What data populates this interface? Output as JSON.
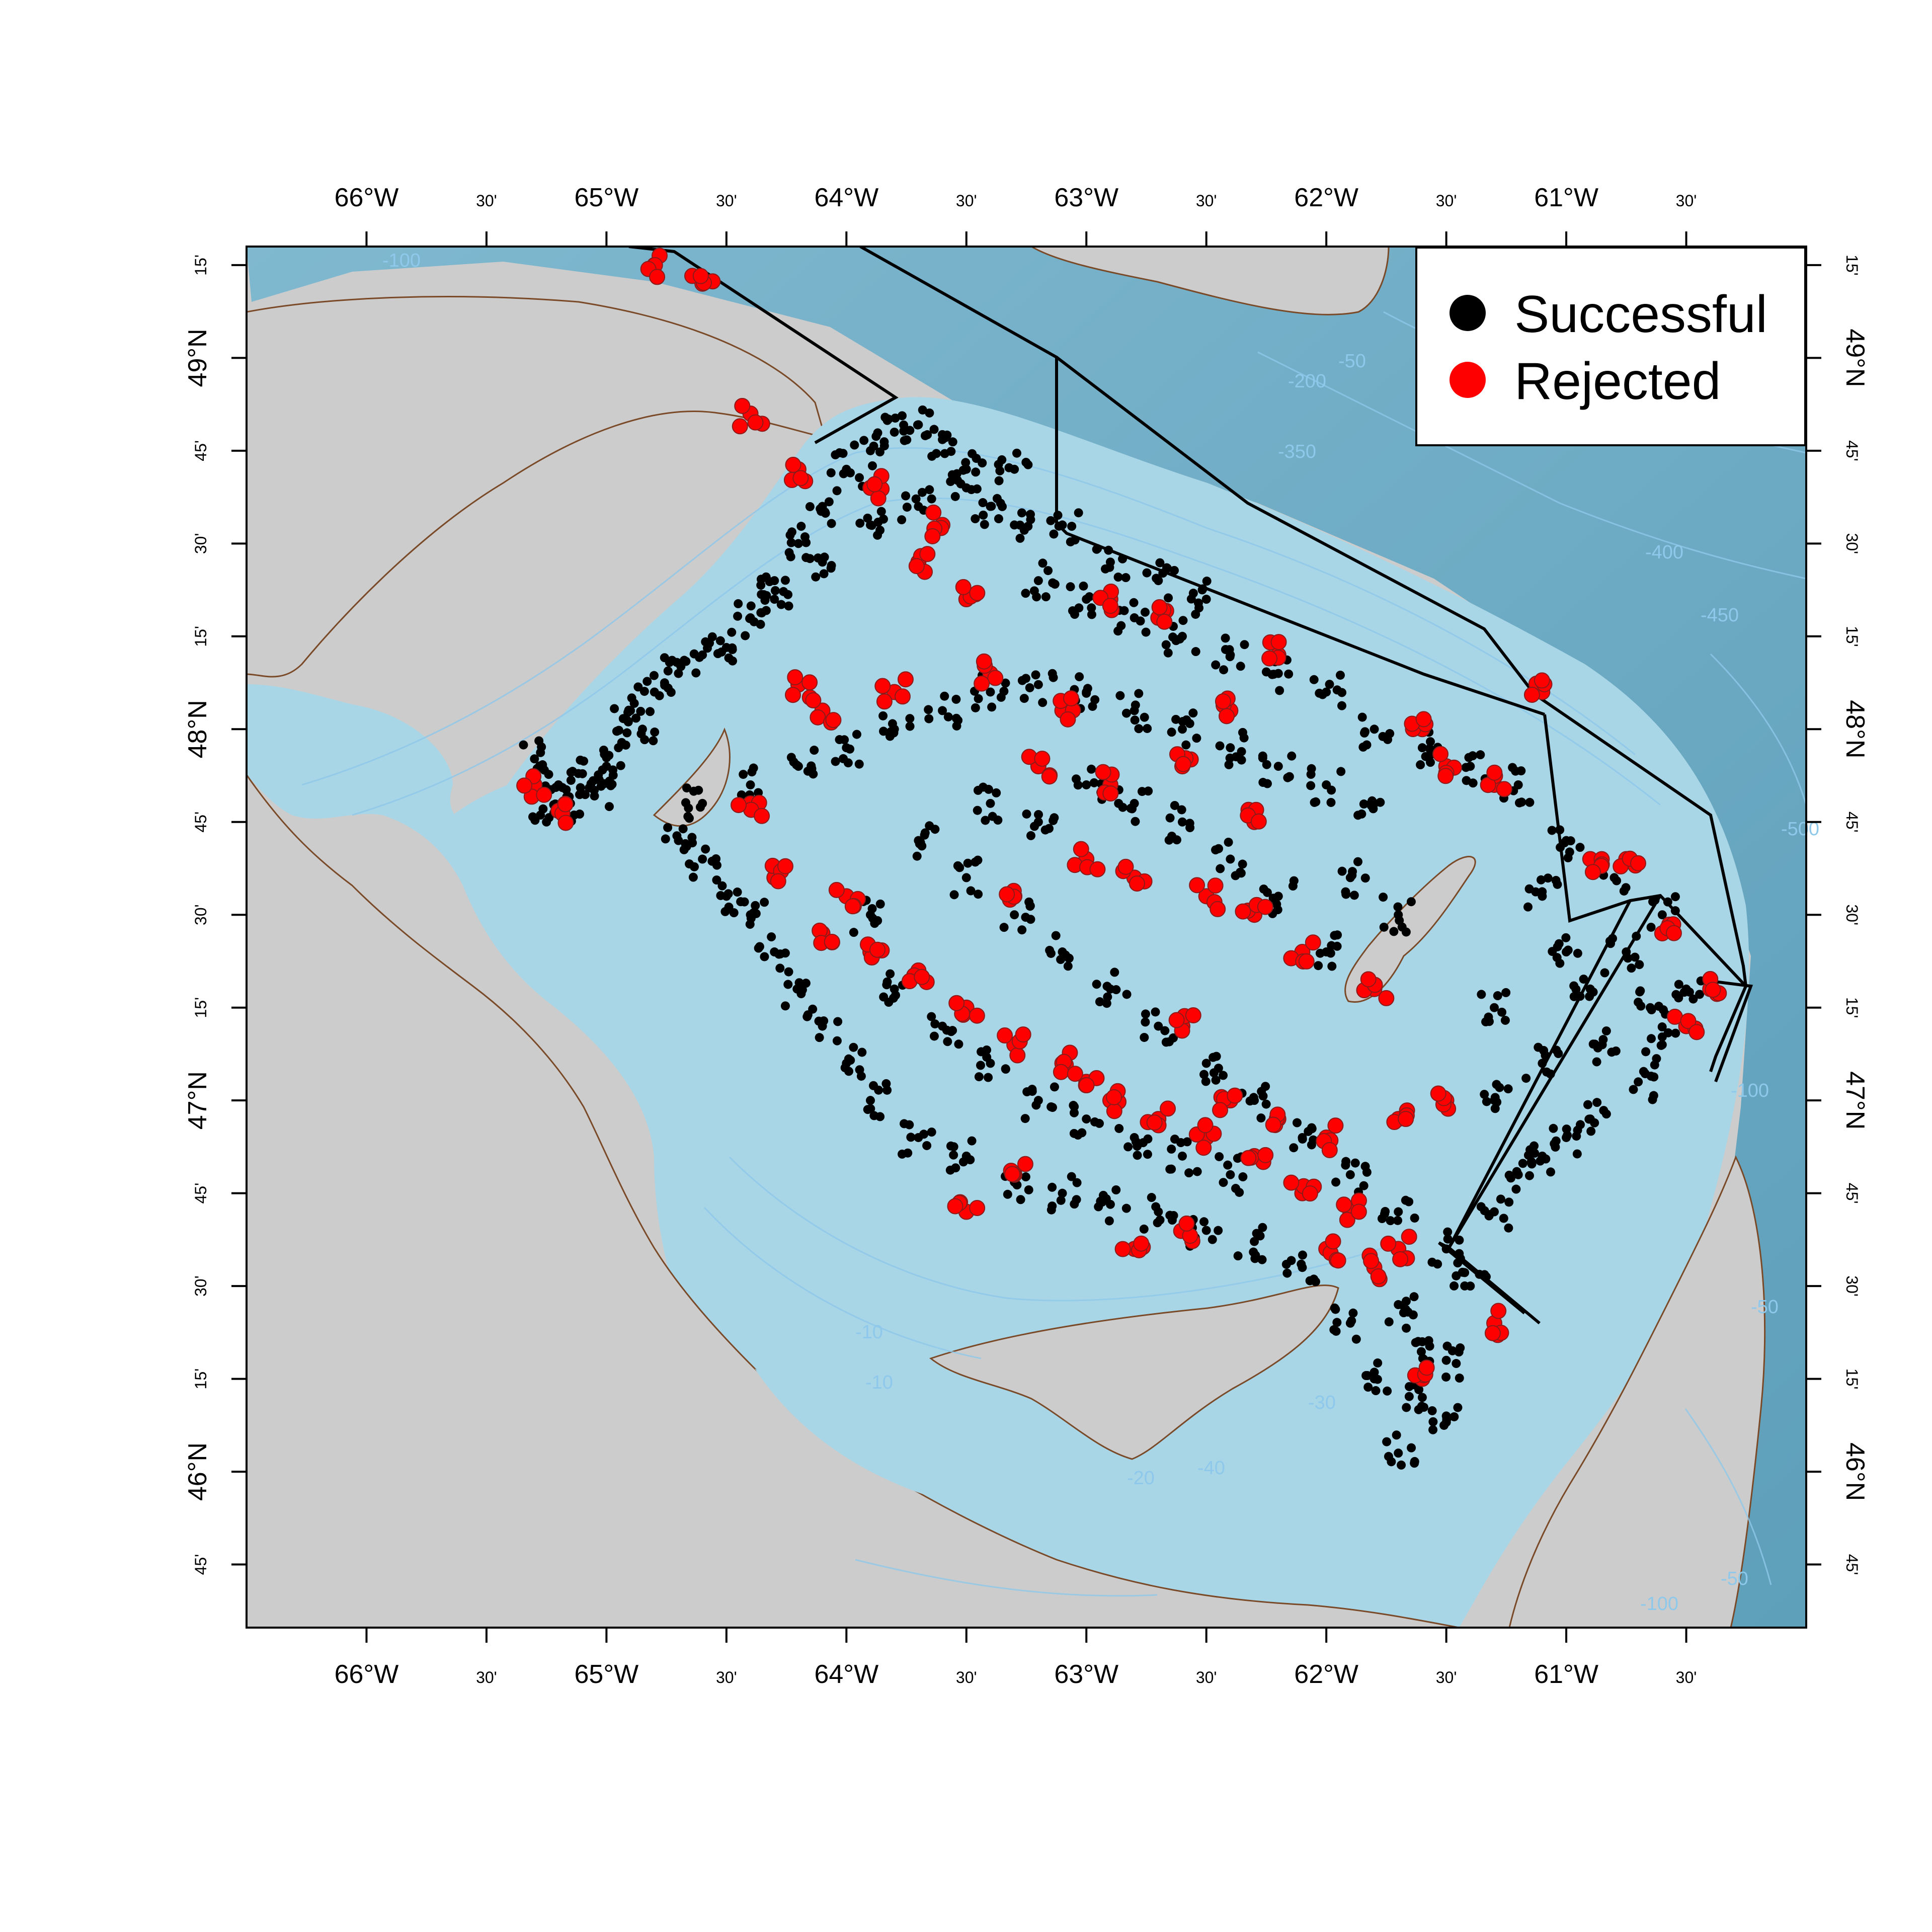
{
  "map": {
    "extent": {
      "lon_min": -66.5,
      "lon_max": -60.0,
      "lat_min": 45.58,
      "lat_max": 49.3
    },
    "colors": {
      "background": "#ffffff",
      "land": "#cccccc",
      "shelf_water": "#a8d6e6",
      "deep_water": "#6aa9c2",
      "channel_water": "#7fb8cf",
      "contour": "#8ec8ea",
      "coastline": "#7a4a28",
      "zone_line": "#000000",
      "successful": "#000000",
      "rejected": "#ff0000"
    },
    "axes": {
      "top_labels": [
        "66°W",
        "30'",
        "65°W",
        "30'",
        "64°W",
        "30'",
        "63°W",
        "30'",
        "62°W",
        "30'",
        "61°W",
        "30'"
      ],
      "bottom_labels": [
        "66°W",
        "30'",
        "65°W",
        "30'",
        "64°W",
        "30'",
        "63°W",
        "30'",
        "62°W",
        "30'",
        "61°W",
        "30'"
      ],
      "lon_values": [
        -66.0,
        -65.5,
        -65.0,
        -64.5,
        -64.0,
        -63.5,
        -63.0,
        -62.5,
        -62.0,
        -61.5,
        -61.0,
        -60.5
      ],
      "left_labels": [
        "15'",
        "49°N",
        "45'",
        "30'",
        "15'",
        "48°N",
        "45'",
        "30'",
        "15'",
        "47°N",
        "45'",
        "30'",
        "15'",
        "46°N",
        "45'"
      ],
      "right_labels": [
        "15'",
        "49°N",
        "45'",
        "30'",
        "15'",
        "48°N",
        "45'",
        "30'",
        "15'",
        "47°N",
        "45'",
        "30'",
        "15'",
        "46°N",
        "45'"
      ],
      "lat_values": [
        49.25,
        49.0,
        48.75,
        48.5,
        48.25,
        48.0,
        47.75,
        47.5,
        47.25,
        47.0,
        46.75,
        46.5,
        46.25,
        46.0,
        45.75
      ]
    },
    "contour_labels": [
      "-50",
      "-100",
      "-200",
      "-350",
      "-400",
      "-450",
      "-500",
      "-100",
      "-50",
      "-10",
      "-10",
      "-20",
      "-30",
      "-40",
      "-50",
      "-100"
    ],
    "legend": {
      "position": "top-right",
      "items": [
        {
          "label": "Successful",
          "color": "#000000"
        },
        {
          "label": "Rejected",
          "color": "#ff0000"
        }
      ]
    }
  },
  "chart_data": {
    "type": "scatter",
    "title": "",
    "xlabel": "",
    "ylabel": "",
    "series": [
      {
        "name": "Successful",
        "points": [
          [
            -65.3,
            47.92
          ],
          [
            -65.2,
            47.85
          ],
          [
            -65.1,
            47.88
          ],
          [
            -65.0,
            47.9
          ],
          [
            -64.9,
            48.05
          ],
          [
            -64.8,
            48.1
          ],
          [
            -64.7,
            48.15
          ],
          [
            -64.6,
            48.2
          ],
          [
            -64.5,
            48.22
          ],
          [
            -64.4,
            48.3
          ],
          [
            -64.3,
            48.35
          ],
          [
            -64.2,
            48.5
          ],
          [
            -64.1,
            48.6
          ],
          [
            -64.0,
            48.7
          ],
          [
            -63.9,
            48.75
          ],
          [
            -63.8,
            48.8
          ],
          [
            -63.7,
            48.82
          ],
          [
            -63.6,
            48.78
          ],
          [
            -63.5,
            48.7
          ],
          [
            -63.4,
            48.6
          ],
          [
            -63.3,
            48.55
          ],
          [
            -63.2,
            48.4
          ],
          [
            -63.0,
            48.35
          ],
          [
            -62.8,
            48.3
          ],
          [
            -62.6,
            48.25
          ],
          [
            -62.4,
            48.2
          ],
          [
            -62.2,
            48.15
          ],
          [
            -62.0,
            48.1
          ],
          [
            -61.8,
            48.0
          ],
          [
            -61.6,
            47.95
          ],
          [
            -61.4,
            47.9
          ],
          [
            -61.2,
            47.85
          ],
          [
            -61.0,
            47.7
          ],
          [
            -60.8,
            47.6
          ],
          [
            -60.6,
            47.5
          ],
          [
            -60.5,
            47.3
          ],
          [
            -60.6,
            47.15
          ],
          [
            -60.7,
            47.05
          ],
          [
            -60.9,
            46.95
          ],
          [
            -61.1,
            46.85
          ],
          [
            -61.3,
            46.7
          ],
          [
            -61.5,
            46.6
          ],
          [
            -61.7,
            46.45
          ],
          [
            -61.5,
            46.3
          ],
          [
            -61.6,
            46.2
          ],
          [
            -61.8,
            46.25
          ],
          [
            -61.9,
            46.4
          ],
          [
            -62.1,
            46.55
          ],
          [
            -62.3,
            46.62
          ],
          [
            -62.5,
            46.65
          ],
          [
            -62.7,
            46.7
          ],
          [
            -62.9,
            46.72
          ],
          [
            -63.1,
            46.75
          ],
          [
            -63.3,
            46.78
          ],
          [
            -63.5,
            46.85
          ],
          [
            -63.7,
            46.9
          ],
          [
            -63.9,
            47.0
          ],
          [
            -64.0,
            47.1
          ],
          [
            -64.1,
            47.2
          ],
          [
            -64.2,
            47.3
          ],
          [
            -64.3,
            47.4
          ],
          [
            -64.4,
            47.5
          ],
          [
            -64.5,
            47.55
          ],
          [
            -64.6,
            47.65
          ],
          [
            -64.7,
            47.7
          ],
          [
            -64.6,
            47.8
          ],
          [
            -64.4,
            47.85
          ],
          [
            -64.2,
            47.9
          ],
          [
            -64.0,
            47.95
          ],
          [
            -63.8,
            48.0
          ],
          [
            -63.6,
            48.05
          ],
          [
            -63.4,
            48.1
          ],
          [
            -63.2,
            48.12
          ],
          [
            -63.0,
            48.1
          ],
          [
            -62.8,
            48.05
          ],
          [
            -62.6,
            48.0
          ],
          [
            -62.4,
            47.95
          ],
          [
            -62.2,
            47.9
          ],
          [
            -62.0,
            47.85
          ],
          [
            -61.8,
            47.8
          ],
          [
            -63.5,
            47.6
          ],
          [
            -63.3,
            47.5
          ],
          [
            -63.1,
            47.4
          ],
          [
            -62.9,
            47.3
          ],
          [
            -62.7,
            47.2
          ],
          [
            -62.5,
            47.1
          ],
          [
            -62.3,
            47.0
          ],
          [
            -62.1,
            46.9
          ],
          [
            -61.9,
            46.8
          ],
          [
            -61.7,
            46.7
          ],
          [
            -63.7,
            47.7
          ],
          [
            -63.9,
            47.5
          ],
          [
            -63.8,
            47.3
          ],
          [
            -63.6,
            47.2
          ],
          [
            -63.4,
            47.1
          ],
          [
            -63.2,
            47.0
          ],
          [
            -63.0,
            46.95
          ],
          [
            -62.8,
            46.9
          ],
          [
            -62.6,
            46.85
          ],
          [
            -62.4,
            46.8
          ],
          [
            -62.0,
            47.4
          ],
          [
            -62.2,
            47.55
          ],
          [
            -62.4,
            47.65
          ],
          [
            -62.6,
            47.75
          ],
          [
            -62.8,
            47.8
          ],
          [
            -63.0,
            47.85
          ],
          [
            -63.2,
            47.75
          ],
          [
            -63.4,
            47.8
          ],
          [
            -61.9,
            47.6
          ],
          [
            -61.7,
            47.5
          ],
          [
            -61.0,
            47.4
          ],
          [
            -60.9,
            47.3
          ],
          [
            -61.1,
            47.1
          ],
          [
            -61.3,
            47.0
          ],
          [
            -61.0,
            46.9
          ],
          [
            -61.2,
            46.8
          ],
          [
            -61.4,
            46.5
          ],
          [
            -61.6,
            46.35
          ],
          [
            -61.5,
            46.15
          ],
          [
            -61.7,
            46.05
          ],
          [
            -63.3,
            48.7
          ],
          [
            -63.5,
            48.65
          ],
          [
            -63.7,
            48.6
          ],
          [
            -63.9,
            48.55
          ],
          [
            -64.1,
            48.45
          ],
          [
            -64.3,
            48.4
          ],
          [
            -63.1,
            48.55
          ],
          [
            -62.9,
            48.45
          ],
          [
            -62.7,
            48.4
          ],
          [
            -62.5,
            48.35
          ],
          [
            -65.15,
            47.8
          ],
          [
            -65.25,
            47.75
          ],
          [
            -65.05,
            47.82
          ],
          [
            -64.95,
            47.95
          ],
          [
            -64.85,
            48.0
          ],
          [
            -61.3,
            47.25
          ],
          [
            -61.1,
            47.55
          ],
          [
            -60.75,
            47.4
          ],
          [
            -60.65,
            47.25
          ],
          [
            -60.85,
            47.15
          ]
        ]
      },
      {
        "name": "Rejected",
        "points": [
          [
            -65.3,
            47.85
          ],
          [
            -65.2,
            47.78
          ],
          [
            -64.4,
            48.85
          ],
          [
            -64.2,
            48.7
          ],
          [
            -63.9,
            48.65
          ],
          [
            -63.6,
            48.55
          ],
          [
            -63.7,
            48.45
          ],
          [
            -63.5,
            48.35
          ],
          [
            -64.8,
            49.25
          ],
          [
            -64.6,
            49.2
          ],
          [
            -64.2,
            48.12
          ],
          [
            -64.1,
            48.05
          ],
          [
            -63.8,
            48.1
          ],
          [
            -63.4,
            48.15
          ],
          [
            -63.1,
            48.05
          ],
          [
            -62.9,
            48.35
          ],
          [
            -62.7,
            48.3
          ],
          [
            -62.4,
            48.05
          ],
          [
            -62.2,
            48.2
          ],
          [
            -61.6,
            48.0
          ],
          [
            -61.5,
            47.9
          ],
          [
            -61.3,
            47.85
          ],
          [
            -61.1,
            48.1
          ],
          [
            -60.9,
            47.65
          ],
          [
            -60.75,
            47.65
          ],
          [
            -60.6,
            47.45
          ],
          [
            -60.4,
            47.3
          ],
          [
            -60.5,
            47.2
          ],
          [
            -64.0,
            47.55
          ],
          [
            -64.1,
            47.45
          ],
          [
            -63.9,
            47.4
          ],
          [
            -63.7,
            47.35
          ],
          [
            -63.5,
            47.25
          ],
          [
            -63.3,
            47.15
          ],
          [
            -63.1,
            47.1
          ],
          [
            -63.0,
            47.05
          ],
          [
            -62.9,
            47.0
          ],
          [
            -62.7,
            46.95
          ],
          [
            -62.5,
            46.9
          ],
          [
            -62.3,
            46.85
          ],
          [
            -62.1,
            46.75
          ],
          [
            -61.9,
            46.7
          ],
          [
            -61.7,
            46.6
          ],
          [
            -62.6,
            47.2
          ],
          [
            -62.4,
            47.0
          ],
          [
            -62.2,
            46.95
          ],
          [
            -62.0,
            46.9
          ],
          [
            -63.3,
            46.8
          ],
          [
            -63.5,
            46.7
          ],
          [
            -62.8,
            46.6
          ],
          [
            -62.6,
            46.65
          ],
          [
            -62.0,
            46.6
          ],
          [
            -61.8,
            46.55
          ],
          [
            -61.5,
            47.0
          ],
          [
            -63.3,
            47.55
          ],
          [
            -63.0,
            47.65
          ],
          [
            -62.8,
            47.6
          ],
          [
            -62.5,
            47.55
          ],
          [
            -62.3,
            47.5
          ],
          [
            -62.1,
            47.4
          ],
          [
            -64.3,
            47.6
          ],
          [
            -64.4,
            47.8
          ],
          [
            -63.2,
            47.9
          ],
          [
            -62.9,
            47.85
          ],
          [
            -62.6,
            47.9
          ],
          [
            -62.3,
            47.75
          ],
          [
            -61.8,
            47.3
          ],
          [
            -61.7,
            46.95
          ],
          [
            -61.3,
            46.4
          ],
          [
            -61.6,
            46.25
          ]
        ]
      }
    ]
  }
}
